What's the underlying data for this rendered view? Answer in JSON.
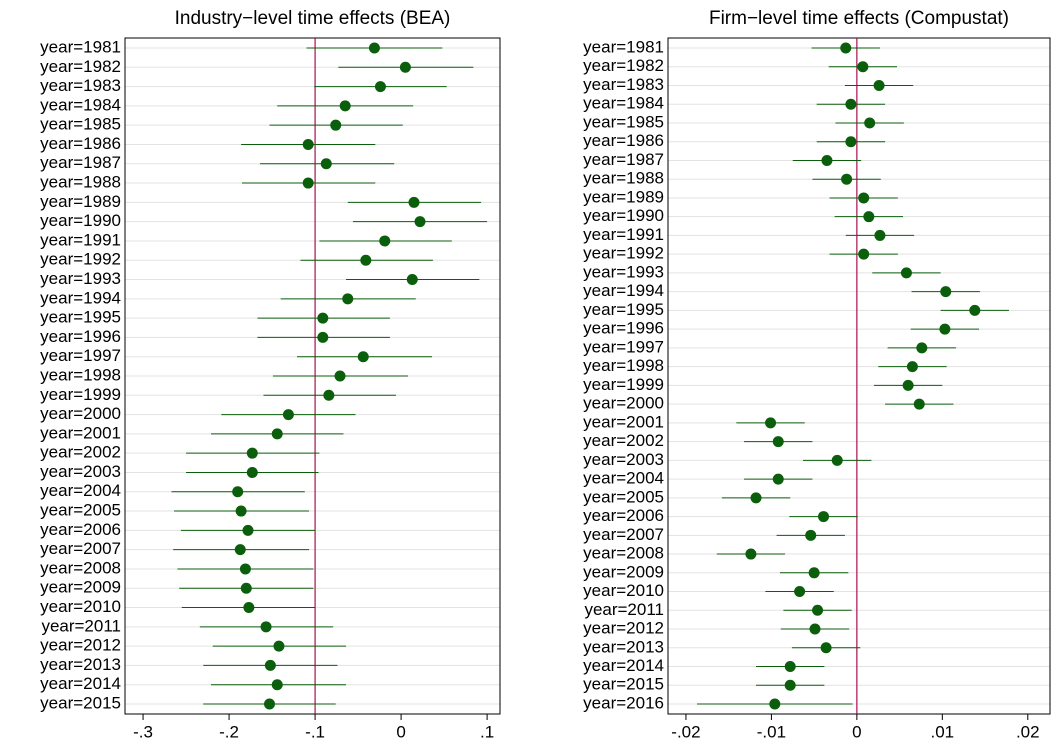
{
  "chart_data": [
    {
      "type": "coefplot",
      "title": "Industry−level time effects (BEA)",
      "categories": [
        "year=1981",
        "year=1982",
        "year=1983",
        "year=1984",
        "year=1985",
        "year=1986",
        "year=1987",
        "year=1988",
        "year=1989",
        "year=1990",
        "year=1991",
        "year=1992",
        "year=1993",
        "year=1994",
        "year=1995",
        "year=1996",
        "year=1997",
        "year=1998",
        "year=1999",
        "year=2000",
        "year=2001",
        "year=2002",
        "year=2003",
        "year=2004",
        "year=2005",
        "year=2006",
        "year=2007",
        "year=2008",
        "year=2009",
        "year=2010",
        "year=2011",
        "year=2012",
        "year=2013",
        "year=2014",
        "year=2015"
      ],
      "values": [
        -0.031,
        0.005,
        -0.024,
        -0.065,
        -0.076,
        -0.108,
        -0.087,
        -0.108,
        0.015,
        0.022,
        -0.019,
        -0.041,
        0.013,
        -0.062,
        -0.091,
        -0.091,
        -0.044,
        -0.071,
        -0.084,
        -0.131,
        -0.144,
        -0.173,
        -0.173,
        -0.19,
        -0.186,
        -0.178,
        -0.187,
        -0.181,
        -0.18,
        -0.177,
        -0.157,
        -0.142,
        -0.152,
        -0.144,
        -0.153
      ],
      "lower": [
        -0.11,
        -0.073,
        -0.101,
        -0.144,
        -0.153,
        -0.186,
        -0.164,
        -0.185,
        -0.062,
        -0.056,
        -0.095,
        -0.117,
        -0.064,
        -0.14,
        -0.167,
        -0.167,
        -0.121,
        -0.149,
        -0.16,
        -0.209,
        -0.221,
        -0.25,
        -0.25,
        -0.267,
        -0.264,
        -0.256,
        -0.265,
        -0.26,
        -0.258,
        -0.255,
        -0.234,
        -0.219,
        -0.23,
        -0.221,
        -0.23
      ],
      "upper": [
        0.048,
        0.084,
        0.053,
        0.014,
        0.002,
        -0.03,
        -0.008,
        -0.03,
        0.093,
        0.1,
        0.059,
        0.037,
        0.091,
        0.017,
        -0.013,
        -0.013,
        0.036,
        0.008,
        -0.006,
        -0.053,
        -0.067,
        -0.095,
        -0.096,
        -0.112,
        -0.107,
        -0.1,
        -0.107,
        -0.102,
        -0.102,
        -0.1,
        -0.079,
        -0.064,
        -0.074,
        -0.064,
        -0.076
      ],
      "color": "#0b5e0b",
      "refline": -0.1,
      "refline_color": "#a8104f",
      "xlim": [
        -0.321,
        0.115
      ],
      "xticks": [
        {
          "value": -0.3,
          "label": "-.3"
        },
        {
          "value": -0.2,
          "label": "-.2"
        },
        {
          "value": -0.1,
          "label": "-.1"
        },
        0,
        {
          "value": 0.1,
          "label": ".1"
        }
      ],
      "grid": true
    },
    {
      "type": "coefplot",
      "title": "Firm−level time effects (Compustat)",
      "categories": [
        "year=1981",
        "year=1982",
        "year=1983",
        "year=1984",
        "year=1985",
        "year=1986",
        "year=1987",
        "year=1988",
        "year=1989",
        "year=1990",
        "year=1991",
        "year=1992",
        "year=1993",
        "year=1994",
        "year=1995",
        "year=1996",
        "year=1997",
        "year=1998",
        "year=1999",
        "year=2000",
        "year=2001",
        "year=2002",
        "year=2003",
        "year=2004",
        "year=2005",
        "year=2006",
        "year=2007",
        "year=2008",
        "year=2009",
        "year=2010",
        "year=2011",
        "year=2012",
        "year=2013",
        "year=2014",
        "year=2015",
        "year=2016"
      ],
      "values": [
        -0.0013,
        0.0007,
        0.0026,
        -0.0007,
        0.0015,
        -0.0007,
        -0.0035,
        -0.0012,
        0.0008,
        0.0014,
        0.0027,
        0.0008,
        0.0058,
        0.0104,
        0.0138,
        0.0103,
        0.0076,
        0.0065,
        0.006,
        0.0073,
        -0.0101,
        -0.0092,
        -0.0023,
        -0.0092,
        -0.0118,
        -0.0039,
        -0.0054,
        -0.0124,
        -0.005,
        -0.0067,
        -0.0046,
        -0.0049,
        -0.0036,
        -0.0078,
        -0.0078,
        -0.0096
      ],
      "lower": [
        -0.0053,
        -0.0033,
        -0.0014,
        -0.0047,
        -0.0025,
        -0.0047,
        -0.0075,
        -0.0052,
        -0.0032,
        -0.0026,
        -0.0013,
        -0.0032,
        0.0018,
        0.0064,
        0.0098,
        0.0063,
        0.0036,
        0.0025,
        0.002,
        0.0033,
        -0.0141,
        -0.0132,
        -0.0063,
        -0.0132,
        -0.0158,
        -0.0079,
        -0.0094,
        -0.0164,
        -0.009,
        -0.0107,
        -0.0086,
        -0.0089,
        -0.0076,
        -0.0118,
        -0.0118,
        -0.0187
      ],
      "upper": [
        0.0027,
        0.0047,
        0.0066,
        0.0033,
        0.0055,
        0.0033,
        0.0005,
        0.0028,
        0.0048,
        0.0054,
        0.0067,
        0.0048,
        0.0098,
        0.0144,
        0.0178,
        0.0143,
        0.0116,
        0.0105,
        0.01,
        0.0113,
        -0.0061,
        -0.0052,
        0.0017,
        -0.0052,
        -0.0078,
        0.0001,
        -0.0014,
        -0.0084,
        -0.001,
        -0.0027,
        -0.0006,
        -0.0009,
        0.0004,
        -0.0038,
        -0.0038,
        -0.0005
      ],
      "color": "#0b5e0b",
      "refline": 0,
      "refline_color": "#a8104f",
      "xlim": [
        -0.0221,
        0.0226
      ],
      "xticks": [
        {
          "value": -0.02,
          "label": "-.02"
        },
        {
          "value": -0.01,
          "label": "-.01"
        },
        0,
        {
          "value": 0.01,
          "label": ".01"
        },
        {
          "value": 0.02,
          "label": ".02"
        }
      ],
      "grid": true
    }
  ]
}
